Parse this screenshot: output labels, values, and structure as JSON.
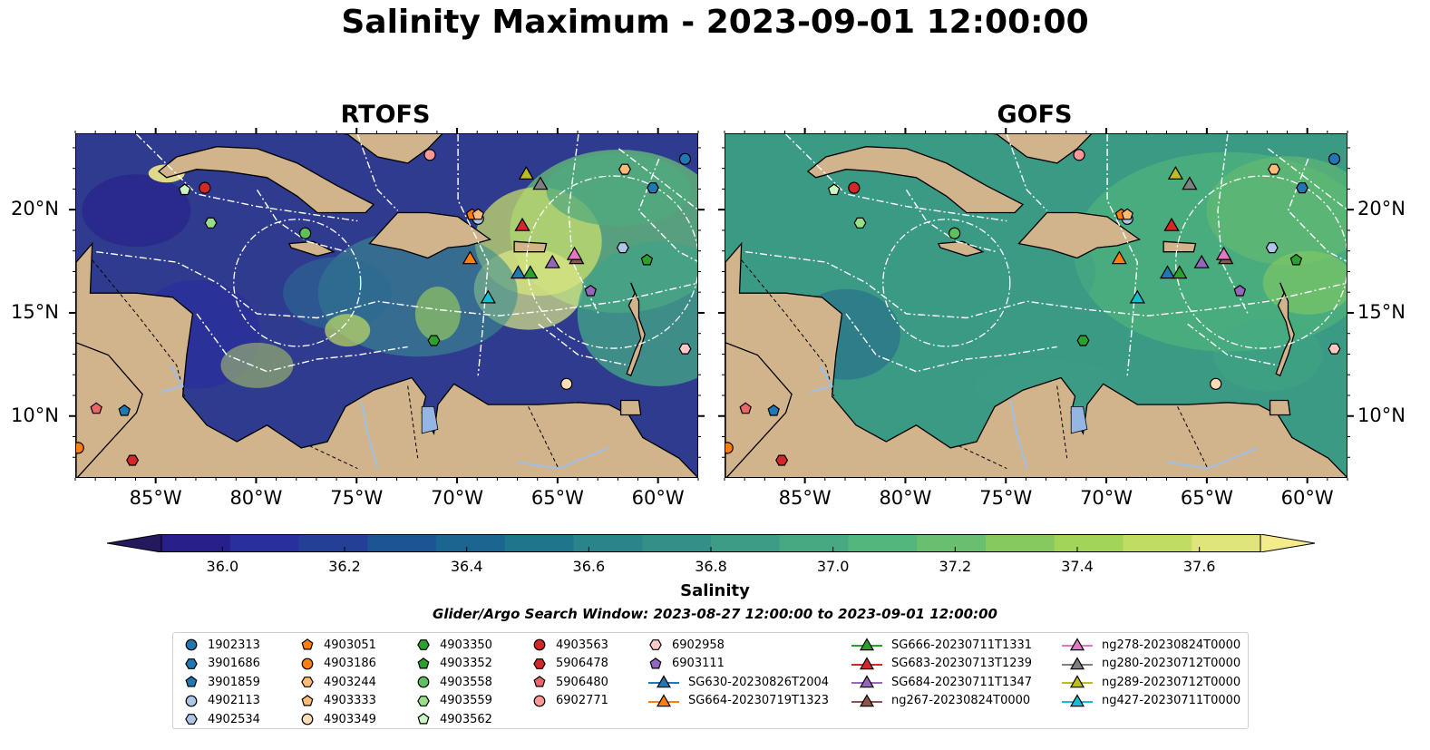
{
  "title": "Salinity Maximum - 2023-09-01 12:00:00",
  "panels": [
    {
      "title": "RTOFS",
      "style": "rtofs"
    },
    {
      "title": "GOFS",
      "style": "gofs"
    }
  ],
  "map": {
    "lon_range": [
      -89,
      -58
    ],
    "lat_range": [
      7,
      23.7
    ],
    "lon_ticks": [
      "85°W",
      "80°W",
      "75°W",
      "70°W",
      "65°W",
      "60°W"
    ],
    "lon_tick_values": [
      -85,
      -80,
      -75,
      -70,
      -65,
      -60
    ],
    "lat_ticks": [
      "10°N",
      "15°N",
      "20°N"
    ],
    "lat_tick_values": [
      10,
      15,
      20
    ],
    "land_color": "#d2b48c",
    "ocean_color_rtofs": "#2e3b8f",
    "ocean_color_gofs": "#3a9a84"
  },
  "colorbar": {
    "label": "Salinity",
    "ticks": [
      "36.0",
      "36.2",
      "36.4",
      "36.6",
      "36.8",
      "37.0",
      "37.2",
      "37.4",
      "37.6"
    ],
    "min": 35.9,
    "max": 37.7,
    "colors": [
      "#24195c",
      "#27208a",
      "#2a2f9e",
      "#233f96",
      "#1d5493",
      "#1b6690",
      "#1f768c",
      "#2a848a",
      "#348f88",
      "#3d9c85",
      "#47a982",
      "#52b67d",
      "#69bf6f",
      "#86c95f",
      "#a3d45a",
      "#c0dc63",
      "#dfe57a",
      "#f4eb8b"
    ]
  },
  "search_window": "Glider/Argo Search Window: 2023-08-27 12:00:00 to 2023-09-01 12:00:00",
  "legend": {
    "columns": [
      [
        {
          "label": "1902313",
          "marker": "circle",
          "color": "#1f77b4"
        },
        {
          "label": "3901686",
          "marker": "hexagon",
          "color": "#1f77b4"
        },
        {
          "label": "3901859",
          "marker": "pentagon",
          "color": "#1f77b4"
        },
        {
          "label": "4902113",
          "marker": "circle",
          "color": "#aec7e8"
        },
        {
          "label": "4902534",
          "marker": "hexagon",
          "color": "#aec7e8"
        }
      ],
      [
        {
          "label": "4903051",
          "marker": "pentagon",
          "color": "#ff7f0e"
        },
        {
          "label": "4903186",
          "marker": "circle",
          "color": "#ff7f0e"
        },
        {
          "label": "4903244",
          "marker": "hexagon",
          "color": "#ffbb78"
        },
        {
          "label": "4903333",
          "marker": "pentagon",
          "color": "#ffbb78"
        },
        {
          "label": "4903349",
          "marker": "circle",
          "color": "#ffdcb8"
        }
      ],
      [
        {
          "label": "4903350",
          "marker": "hexagon",
          "color": "#2ca02c"
        },
        {
          "label": "4903352",
          "marker": "pentagon",
          "color": "#2ca02c"
        },
        {
          "label": "4903558",
          "marker": "circle",
          "color": "#5fc05f"
        },
        {
          "label": "4903559",
          "marker": "hexagon",
          "color": "#98df8a"
        },
        {
          "label": "4903562",
          "marker": "pentagon",
          "color": "#c9f5c0"
        }
      ],
      [
        {
          "label": "4903563",
          "marker": "circle",
          "color": "#d62728"
        },
        {
          "label": "5906478",
          "marker": "hexagon",
          "color": "#d62728"
        },
        {
          "label": "5906480",
          "marker": "pentagon",
          "color": "#e8686a"
        },
        {
          "label": "6902771",
          "marker": "circle",
          "color": "#ff9896"
        }
      ],
      [
        {
          "label": "6902958",
          "marker": "hexagon",
          "color": "#ffc9c8"
        },
        {
          "label": "6903111",
          "marker": "pentagon",
          "color": "#9467bd"
        },
        {
          "label": "SG630-20230826T2004",
          "marker": "triangle-line",
          "color": "#1f77b4"
        },
        {
          "label": "SG664-20230719T1323",
          "marker": "triangle-line",
          "color": "#ff7f0e"
        }
      ],
      [
        {
          "label": "SG666-20230711T1331",
          "marker": "triangle-line",
          "color": "#2ca02c"
        },
        {
          "label": "SG683-20230713T1239",
          "marker": "triangle-line",
          "color": "#d62728"
        },
        {
          "label": "SG684-20230711T1347",
          "marker": "triangle-line",
          "color": "#9467bd"
        },
        {
          "label": "ng267-20230824T0000",
          "marker": "triangle-line",
          "color": "#8c564b"
        }
      ],
      [
        {
          "label": "ng278-20230824T0000",
          "marker": "triangle-line",
          "color": "#e377c2"
        },
        {
          "label": "ng280-20230712T0000",
          "marker": "triangle-line",
          "color": "#7f7f7f"
        },
        {
          "label": "ng289-20230712T0000",
          "marker": "triangle-line",
          "color": "#bcbd22"
        },
        {
          "label": "ng427-20230711T0000",
          "marker": "triangle-line",
          "color": "#17becf"
        }
      ]
    ]
  },
  "observations": [
    {
      "id": "1902313",
      "lon": -58.7,
      "lat": 22.5
    },
    {
      "id": "3901686",
      "lon": -60.3,
      "lat": 21.1
    },
    {
      "id": "3901859",
      "lon": -86.6,
      "lat": 10.3
    },
    {
      "id": "4902113",
      "lon": -69.0,
      "lat": 19.6
    },
    {
      "id": "4902534",
      "lon": -61.8,
      "lat": 18.2
    },
    {
      "id": "4903051",
      "lon": -69.3,
      "lat": 19.8
    },
    {
      "id": "4903186",
      "lon": -88.9,
      "lat": 8.5
    },
    {
      "id": "4903244",
      "lon": -61.7,
      "lat": 22.0
    },
    {
      "id": "4903333",
      "lon": -69.0,
      "lat": 19.8
    },
    {
      "id": "4903349",
      "lon": -64.6,
      "lat": 11.6
    },
    {
      "id": "4903350",
      "lon": -71.2,
      "lat": 13.7
    },
    {
      "id": "4903352",
      "lon": -60.6,
      "lat": 17.6
    },
    {
      "id": "4903558",
      "lon": -77.6,
      "lat": 18.9
    },
    {
      "id": "4903559",
      "lon": -82.3,
      "lat": 19.4
    },
    {
      "id": "4903562",
      "lon": -83.6,
      "lat": 21.0
    },
    {
      "id": "4903563",
      "lon": -82.6,
      "lat": 21.1
    },
    {
      "id": "5906478",
      "lon": -86.2,
      "lat": 7.9
    },
    {
      "id": "5906480",
      "lon": -88.0,
      "lat": 10.4
    },
    {
      "id": "6902771",
      "lon": -71.4,
      "lat": 22.7
    },
    {
      "id": "6902958",
      "lon": -58.7,
      "lat": 13.3
    },
    {
      "id": "6903111",
      "lon": -63.4,
      "lat": 16.1
    },
    {
      "id": "SG630-20230826T2004",
      "lon": -67.0,
      "lat": 17.0
    },
    {
      "id": "SG664-20230719T1323",
      "lon": -69.4,
      "lat": 17.7
    },
    {
      "id": "SG666-20230711T1331",
      "lon": -66.4,
      "lat": 17.0
    },
    {
      "id": "SG683-20230713T1239",
      "lon": -66.8,
      "lat": 19.3
    },
    {
      "id": "SG684-20230711T1347",
      "lon": -65.3,
      "lat": 17.5
    },
    {
      "id": "ng267-20230824T0000",
      "lon": -64.1,
      "lat": 17.7
    },
    {
      "id": "ng278-20230824T0000",
      "lon": -64.2,
      "lat": 17.9
    },
    {
      "id": "ng280-20230712T0000",
      "lon": -65.9,
      "lat": 21.3
    },
    {
      "id": "ng289-20230712T0000",
      "lon": -66.6,
      "lat": 21.8
    },
    {
      "id": "ng427-20230711T0000",
      "lon": -68.5,
      "lat": 15.8
    }
  ]
}
